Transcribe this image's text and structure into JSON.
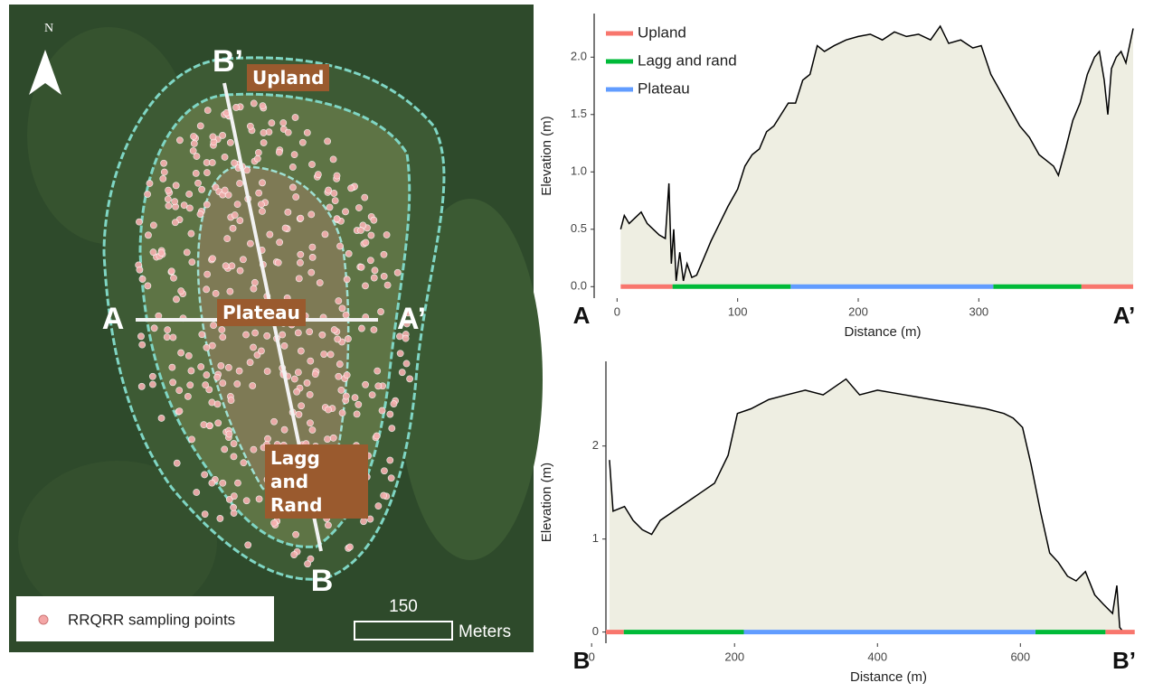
{
  "map": {
    "north": "N",
    "point_labels": [
      "B’",
      "A",
      "A’",
      "B"
    ],
    "zone_labels": [
      "Upland",
      "Plateau",
      "Lagg and Rand"
    ],
    "legend": "RRQRR sampling points",
    "scale_value": "150",
    "scale_unit": "Meters"
  },
  "chart_data": [
    {
      "type": "area",
      "xlabel": "Distance (m)",
      "ylabel": "Elevation (m)",
      "start_label": "A",
      "end_label": "A’",
      "color": "#000000",
      "fill": "#eeeee2",
      "x": [
        3,
        6,
        10,
        15,
        20,
        25,
        30,
        35,
        40,
        43,
        45,
        47,
        49,
        52,
        55,
        58,
        62,
        66,
        72,
        78,
        85,
        92,
        100,
        106,
        112,
        118,
        124,
        130,
        136,
        142,
        148,
        154,
        160,
        166,
        172,
        180,
        190,
        200,
        210,
        220,
        230,
        240,
        250,
        260,
        268,
        275,
        285,
        295,
        302,
        310,
        318,
        326,
        334,
        342,
        350,
        356,
        362,
        366,
        372,
        378,
        384,
        390,
        396,
        400,
        404,
        407,
        410,
        414,
        418,
        422,
        428
      ],
      "values": [
        0.5,
        0.62,
        0.55,
        0.6,
        0.65,
        0.55,
        0.5,
        0.45,
        0.42,
        0.9,
        0.2,
        0.5,
        0.05,
        0.3,
        0.05,
        0.2,
        0.08,
        0.1,
        0.25,
        0.4,
        0.55,
        0.7,
        0.85,
        1.05,
        1.15,
        1.2,
        1.35,
        1.4,
        1.5,
        1.6,
        1.6,
        1.8,
        1.85,
        2.1,
        2.05,
        2.1,
        2.15,
        2.18,
        2.2,
        2.15,
        2.22,
        2.18,
        2.2,
        2.15,
        2.27,
        2.12,
        2.15,
        2.08,
        2.1,
        1.85,
        1.7,
        1.55,
        1.4,
        1.3,
        1.15,
        1.1,
        1.05,
        0.97,
        1.2,
        1.45,
        1.6,
        1.85,
        2.0,
        2.05,
        1.8,
        1.5,
        1.9,
        2.0,
        2.05,
        1.95,
        2.25
      ],
      "xlim": [
        -19,
        437
      ],
      "ylim": [
        -0.1,
        2.38
      ],
      "xticks": [
        0,
        100,
        200,
        300
      ],
      "yticks": [
        {
          "value": 0,
          "label": "0.0"
        },
        0.5,
        {
          "value": 1,
          "label": "1.0"
        },
        1.5,
        {
          "value": 2,
          "label": "2.0"
        }
      ],
      "series": [
        {
          "name": "Upland",
          "color": "#f8766d",
          "segments": [
            [
              3,
              46
            ],
            [
              385,
              428
            ]
          ]
        },
        {
          "name": "Lagg and rand",
          "color": "#00ba38",
          "segments": [
            [
              46,
              144
            ],
            [
              312,
              385
            ]
          ]
        },
        {
          "name": "Plateau",
          "color": "#619cff",
          "segments": [
            [
              144,
              312
            ]
          ]
        }
      ],
      "legend": "top-left"
    },
    {
      "type": "area",
      "xlabel": "Distance (m)",
      "ylabel": "Elevation (m)",
      "start_label": "B",
      "end_label": "B’",
      "color": "#000000",
      "fill": "#eeeee2",
      "x": [
        25,
        30,
        46,
        58,
        71,
        84,
        96,
        115,
        134,
        153,
        172,
        191,
        204,
        223,
        248,
        273,
        299,
        324,
        356,
        375,
        400,
        438,
        476,
        514,
        552,
        577,
        590,
        603,
        615,
        628,
        641,
        653,
        666,
        678,
        691,
        704,
        716,
        729,
        735,
        739,
        744
      ],
      "values": [
        1.85,
        1.3,
        1.35,
        1.2,
        1.1,
        1.05,
        1.2,
        1.3,
        1.4,
        1.5,
        1.6,
        1.9,
        2.35,
        2.4,
        2.5,
        2.55,
        2.6,
        2.55,
        2.72,
        2.55,
        2.6,
        2.55,
        2.5,
        2.45,
        2.4,
        2.35,
        2.3,
        2.2,
        1.8,
        1.3,
        0.85,
        0.75,
        0.6,
        0.55,
        0.65,
        0.4,
        0.3,
        0.2,
        0.5,
        0.05,
        0
      ],
      "xlim": [
        20,
        773
      ],
      "ylim": [
        -0.12,
        2.91
      ],
      "xticks": [
        0,
        200,
        400,
        600
      ],
      "yticks": [
        0,
        1,
        2
      ],
      "series": [
        {
          "color": "#f8766d",
          "segments": [
            [
              20,
              45
            ],
            [
              719,
              760
            ]
          ]
        },
        {
          "color": "#00ba38",
          "segments": [
            [
              45,
              213
            ],
            [
              621,
              719
            ]
          ]
        },
        {
          "color": "#619cff",
          "segments": [
            [
              213,
              621
            ]
          ]
        }
      ]
    }
  ]
}
